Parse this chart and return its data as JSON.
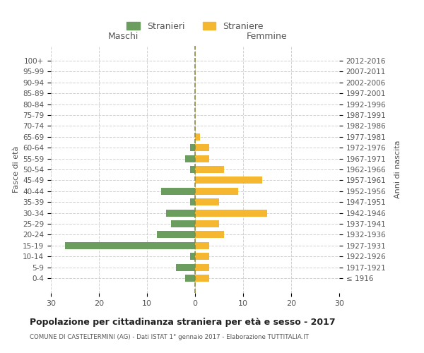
{
  "age_groups": [
    "100+",
    "95-99",
    "90-94",
    "85-89",
    "80-84",
    "75-79",
    "70-74",
    "65-69",
    "60-64",
    "55-59",
    "50-54",
    "45-49",
    "40-44",
    "35-39",
    "30-34",
    "25-29",
    "20-24",
    "15-19",
    "10-14",
    "5-9",
    "0-4"
  ],
  "birth_years": [
    "≤ 1916",
    "1917-1921",
    "1922-1926",
    "1927-1931",
    "1932-1936",
    "1937-1941",
    "1942-1946",
    "1947-1951",
    "1952-1956",
    "1957-1961",
    "1962-1966",
    "1967-1971",
    "1972-1976",
    "1977-1981",
    "1982-1986",
    "1987-1991",
    "1992-1996",
    "1997-2001",
    "2002-2006",
    "2007-2011",
    "2012-2016"
  ],
  "males": [
    0,
    0,
    0,
    0,
    0,
    0,
    0,
    0,
    1,
    2,
    1,
    0,
    7,
    1,
    6,
    5,
    8,
    27,
    1,
    4,
    2
  ],
  "females": [
    0,
    0,
    0,
    0,
    0,
    0,
    0,
    1,
    3,
    3,
    6,
    14,
    9,
    5,
    15,
    5,
    6,
    3,
    3,
    3,
    3
  ],
  "male_color": "#6b9e5e",
  "female_color": "#f5b730",
  "center_line_color": "#8b8b3a",
  "background_color": "#ffffff",
  "grid_color": "#cccccc",
  "title": "Popolazione per cittadinanza straniera per età e sesso - 2017",
  "subtitle": "COMUNE DI CASTELTERMINI (AG) - Dati ISTAT 1° gennaio 2017 - Elaborazione TUTTITALIA.IT",
  "ylabel_left": "Fasce di età",
  "ylabel_right": "Anni di nascita",
  "xlabel_left": "Maschi",
  "xlabel_right": "Femmine",
  "legend_males": "Stranieri",
  "legend_females": "Straniere",
  "xlim": 30
}
